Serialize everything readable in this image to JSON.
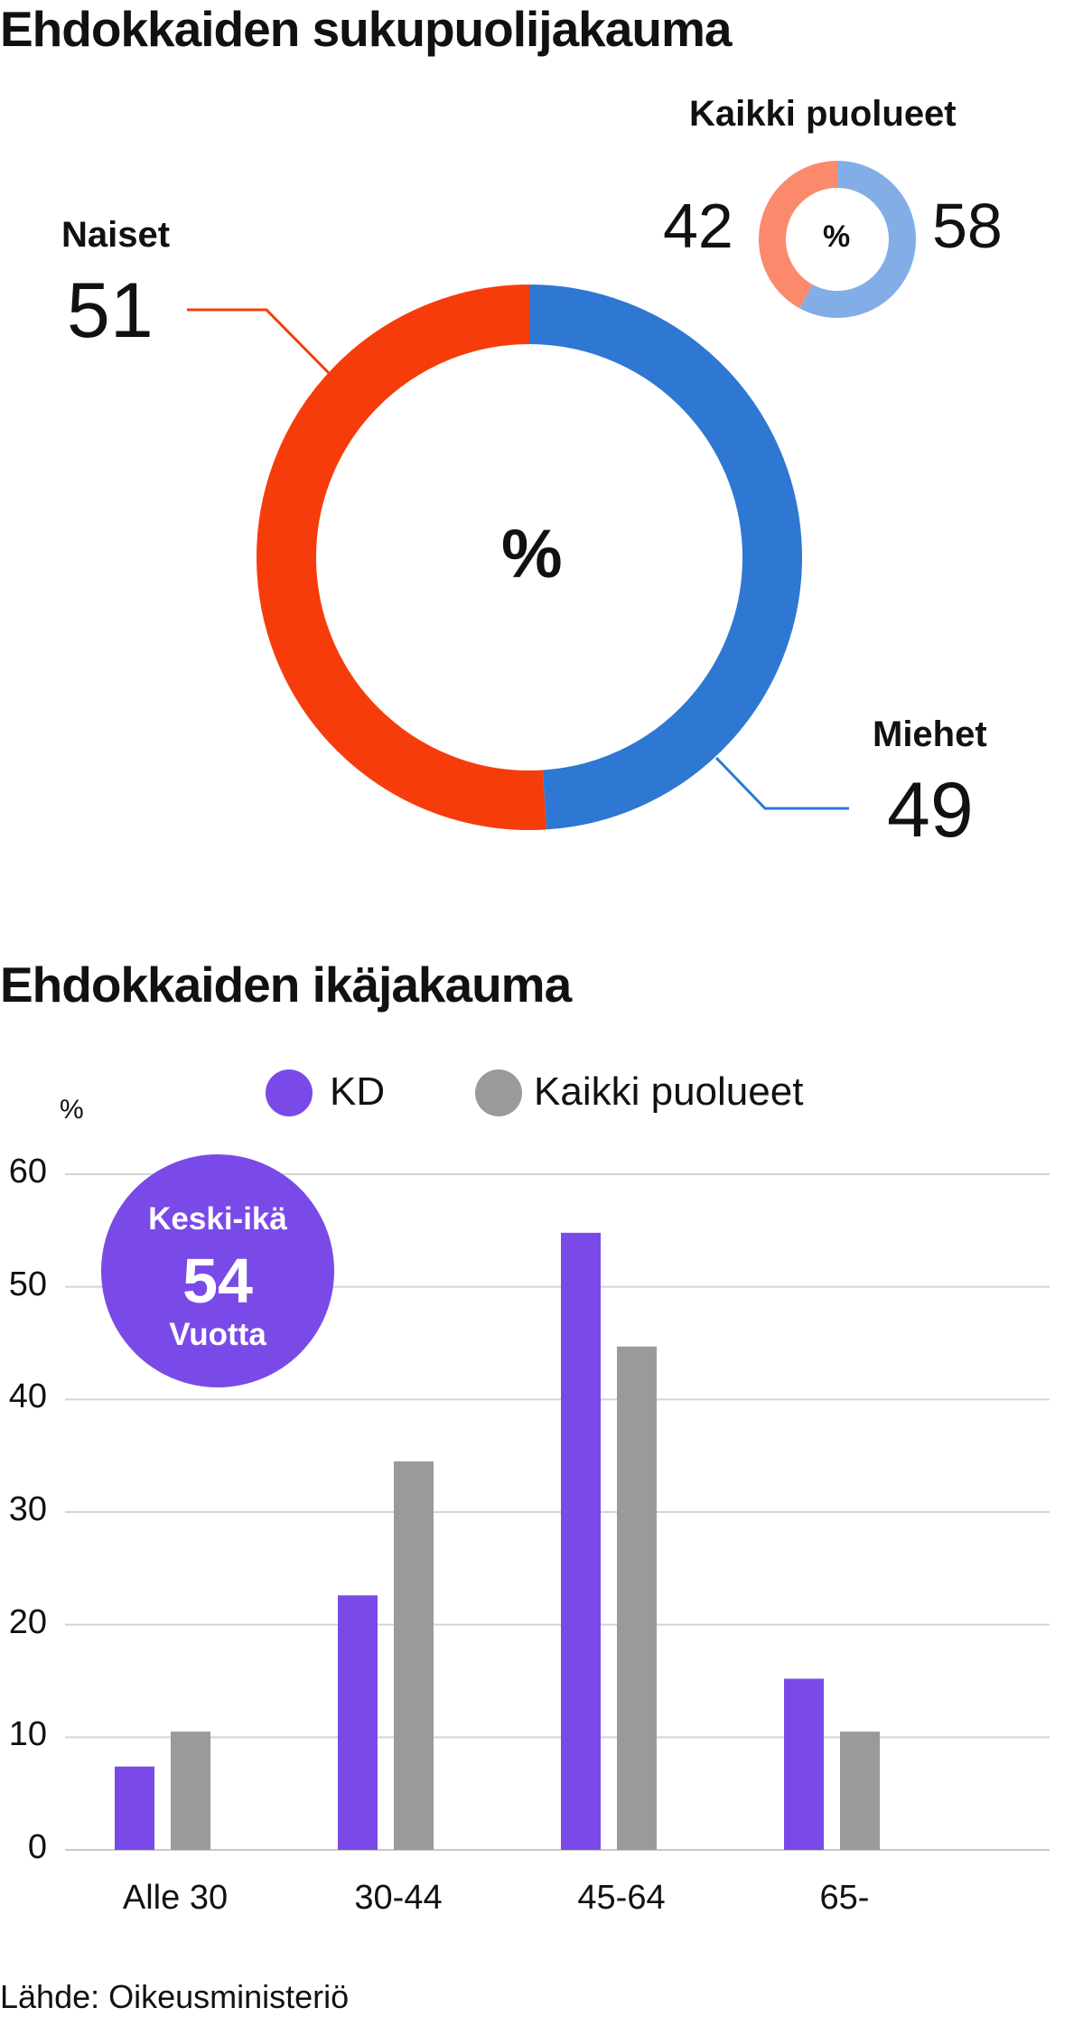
{
  "titles": {
    "gender": "Ehdokkaiden sukupuolijakauma",
    "age": "Ehdokkaiden ikäjakauma"
  },
  "colors": {
    "women": "#f73c0c",
    "men": "#2e78d3",
    "women_all": "#fb8a6c",
    "men_all": "#83ade6",
    "kd": "#7a4ae8",
    "all": "#9a9a9a",
    "grid": "#d4d4d4"
  },
  "chart_data": [
    {
      "type": "pie",
      "variant": "donut",
      "center_label": "%",
      "slices": [
        {
          "label": "Naiset",
          "value": 51
        },
        {
          "label": "Miehet",
          "value": 49
        }
      ]
    },
    {
      "type": "pie",
      "variant": "donut",
      "title": "Kaikki puolueet",
      "center_label": "%",
      "slices": [
        {
          "label": "Naiset",
          "value": 42
        },
        {
          "label": "Miehet",
          "value": 58
        }
      ]
    },
    {
      "type": "bar",
      "title": "Ehdokkaiden ikäjakauma",
      "ylabel": "%",
      "ylim": [
        0,
        60
      ],
      "yticks": [
        0,
        10,
        20,
        30,
        40,
        50,
        60
      ],
      "grid": true,
      "legend_position": "top",
      "categories": [
        "Alle 30",
        "30-44",
        "45-64",
        "65-"
      ],
      "series": [
        {
          "name": "KD",
          "values": [
            7.4,
            22.6,
            54.8,
            15.2
          ]
        },
        {
          "name": "Kaikki puolueet",
          "values": [
            10.5,
            34.5,
            44.7,
            10.5
          ]
        }
      ]
    }
  ],
  "avg_badge": {
    "line1": "Keski-ikä",
    "value": "54",
    "line3": "Vuotta"
  },
  "source": "Lähde: Oikeusministeriö"
}
